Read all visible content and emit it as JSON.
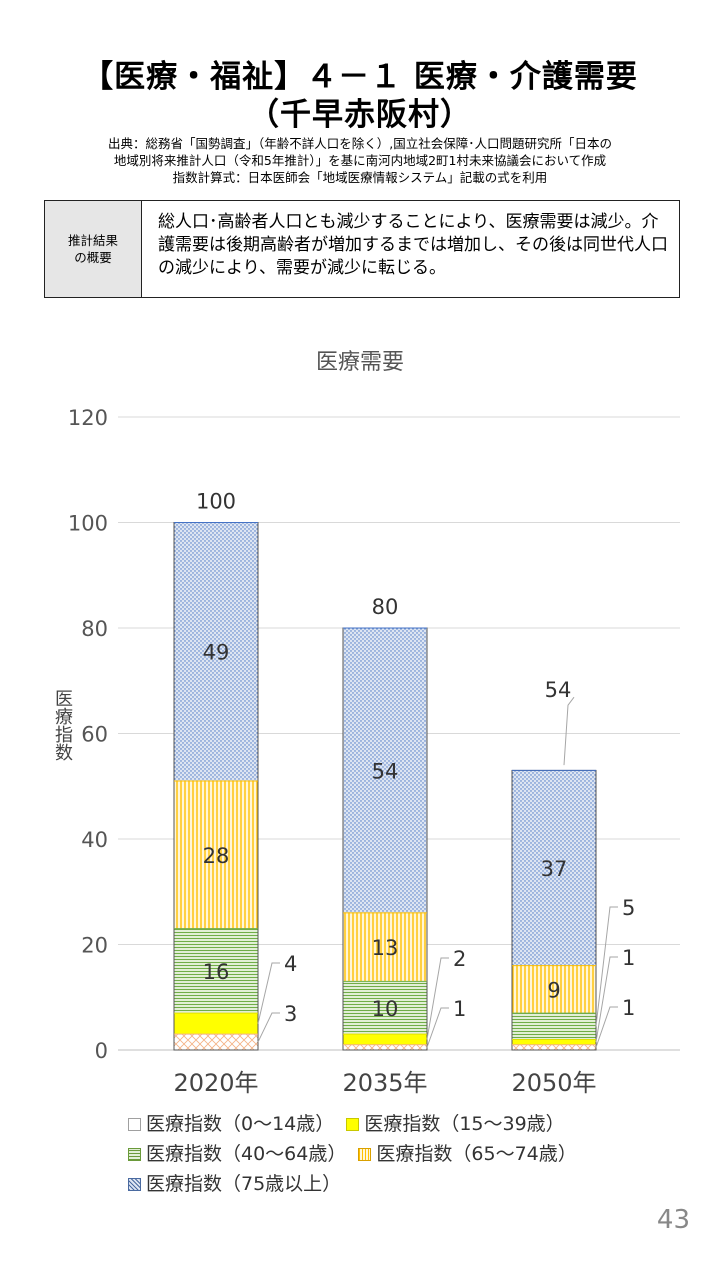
{
  "header": {
    "title_line1": "【医療・福祉】４－１ 医療・介護需要",
    "title_line2": "（千早赤阪村）",
    "source_line1": "出典：総務省「国勢調査」（年齢不詳人口を除く）,国立社会保障･人口問題研究所「日本の",
    "source_line2": "地域別将来推計人口（令和5年推計）」を基に南河内地域2町1村未来協議会において作成",
    "source_line3": "指数計算式：日本医師会「地域医療情報システム」記載の式を利用"
  },
  "summary": {
    "label": "推計結果\nの概要",
    "text": "総人口･高齢者人口とも減少することにより、医療需要は減少。介護需要は後期高齢者が増加するまでは増加し、その後は同世代人口の減少により、需要が減少に転じる。"
  },
  "page_number": "43",
  "colors": {
    "age_0_14": "#ffffff",
    "age_15_39": "#ffff00",
    "age_40_64": "#70ad47",
    "age_65_74": "#ffc000",
    "age_75_plus": "#4472c4"
  },
  "chart_data": {
    "type": "bar",
    "stacked": true,
    "title": "医療需要",
    "ylabel": "医療指数",
    "xlabel": "",
    "ylim": [
      0,
      120
    ],
    "yticks": [
      "0",
      "20",
      "40",
      "60",
      "80",
      "100",
      "120"
    ],
    "grid": true,
    "legend_position": "bottom",
    "categories": [
      "2020年",
      "2035年",
      "2050年"
    ],
    "totals": [
      100,
      80,
      54
    ],
    "series": [
      {
        "name": "医療指数（0～14歳）",
        "values": [
          3,
          1,
          1
        ]
      },
      {
        "name": "医療指数（15～39歳）",
        "values": [
          4,
          2,
          1
        ]
      },
      {
        "name": "医療指数（40～64歳）",
        "values": [
          16,
          10,
          5
        ]
      },
      {
        "name": "医療指数（65～74歳）",
        "values": [
          28,
          13,
          9
        ]
      },
      {
        "name": "医療指数（75歳以上）",
        "values": [
          49,
          54,
          37
        ]
      }
    ]
  }
}
